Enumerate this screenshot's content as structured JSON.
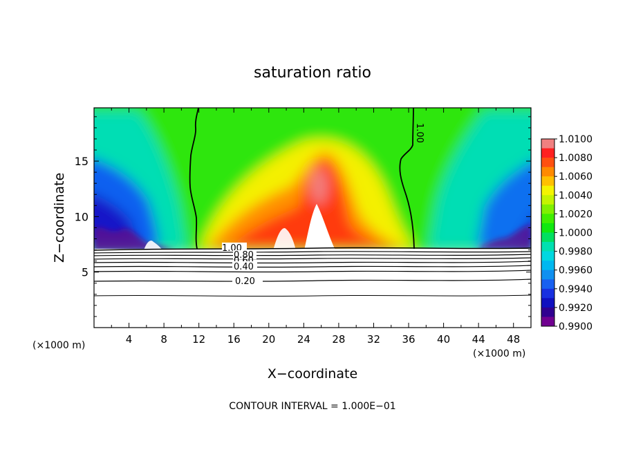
{
  "chart_data": {
    "type": "heatmap",
    "title": "saturation ratio",
    "xlabel": "X−coordinate",
    "ylabel": "Z−coordinate",
    "x_unit_left": "(×1000 m)",
    "x_unit_right": "(×1000 m)",
    "xlim": [
      0,
      50
    ],
    "ylim": [
      0,
      19.8
    ],
    "xticks": [
      4,
      8,
      12,
      16,
      20,
      24,
      28,
      32,
      36,
      40,
      44,
      48
    ],
    "xtick_labels": [
      "4",
      "8",
      "12",
      "16",
      "20",
      "24",
      "28",
      "32",
      "36",
      "40",
      "44",
      "48"
    ],
    "yticks": [
      5,
      10,
      15
    ],
    "ytick_labels": [
      "5",
      "10",
      "15"
    ],
    "colorbar": {
      "min": 0.99,
      "max": 1.01,
      "levels": [
        "1.0100",
        "1.0080",
        "1.0060",
        "1.0040",
        "1.0020",
        "1.0000",
        "0.9980",
        "0.9960",
        "0.9940",
        "0.9920",
        "0.9900"
      ],
      "colors": [
        "#F08080",
        "#FF2020",
        "#FF5010",
        "#FF8A00",
        "#FFC000",
        "#F4F400",
        "#C4F400",
        "#80F000",
        "#40EE00",
        "#10E810",
        "#00E060",
        "#00E0B0",
        "#00D8E0",
        "#00B8F0",
        "#1090F0",
        "#1860F0",
        "#1830E0",
        "#1010C0",
        "#300090",
        "#700090"
      ]
    },
    "contour_labels": [
      "1.00",
      "1.00",
      "0.80",
      "0.60",
      "0.40",
      "0.20"
    ],
    "contour_levels": [
      1.0,
      0.9,
      0.8,
      0.7,
      0.6,
      0.5,
      0.4,
      0.3,
      0.2,
      0.1
    ],
    "note": "CONTOUR INTERVAL = 1.000E−01"
  }
}
